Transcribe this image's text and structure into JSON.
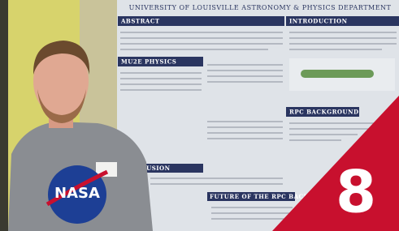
{
  "poster": {
    "department": "University of Louisville Astronomy & Physics Department",
    "sections": [
      "Abstract",
      "Mu2e Physics",
      "Introduction",
      "RPC Background",
      "clusion",
      "Future of the RPC Background"
    ]
  },
  "shirt": {
    "logo": "NASA"
  },
  "badge": {
    "number": "8"
  }
}
